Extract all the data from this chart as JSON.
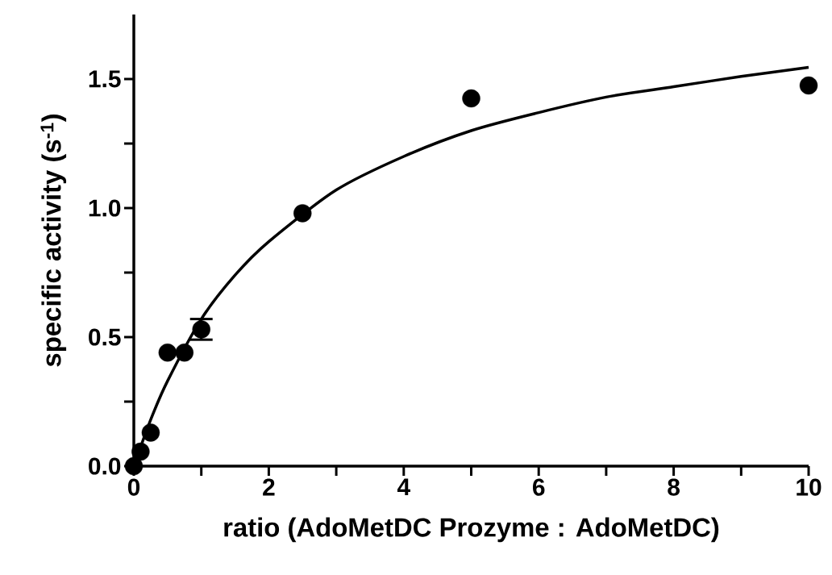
{
  "chart_data": {
    "type": "scatter",
    "xlabel": "ratio (AdoMetDC Prozyme : AdoMetDC)",
    "ylabel": "specific activity (s$^{-1}$)",
    "xlim": [
      0,
      10
    ],
    "ylim": [
      0,
      1.75
    ],
    "xticks": [
      0,
      {
        "value": 1,
        "label": null
      },
      2,
      {
        "value": 3,
        "label": null
      },
      4,
      {
        "value": 5,
        "label": null
      },
      6,
      {
        "value": 7,
        "label": null
      },
      8,
      {
        "value": 9,
        "label": null
      },
      10
    ],
    "yticks": [
      {
        "value": 0,
        "label": "0.0"
      },
      {
        "value": 0.25,
        "label": null
      },
      {
        "value": 0.5,
        "label": "0.5"
      },
      {
        "value": 0.75,
        "label": null
      },
      {
        "value": 1,
        "label": "1.0"
      },
      {
        "value": 1.25,
        "label": null
      },
      {
        "value": 1.5,
        "label": "1.5"
      }
    ],
    "grid": false,
    "series": [
      {
        "marker": "circle",
        "color": "#000000",
        "x": [
          0,
          0.1,
          0.25,
          0.5,
          0.75,
          1,
          2.5,
          5,
          10
        ],
        "values": [
          0,
          0.056,
          0.13,
          0.44,
          0.44,
          0.53,
          0.98,
          1.425,
          1.475
        ],
        "errors": [
          null,
          null,
          null,
          null,
          null,
          0.04,
          null,
          null,
          null
        ]
      },
      {
        "type": "line",
        "marker": "none",
        "line_style": "solid",
        "color": "#000000",
        "x": [
          0,
          0.25,
          0.5,
          1,
          1.5,
          2,
          3,
          4,
          5,
          6,
          7,
          8,
          9,
          10
        ],
        "values": [
          0,
          0.18,
          0.33,
          0.57,
          0.74,
          0.87,
          1.07,
          1.2,
          1.3,
          1.37,
          1.43,
          1.47,
          1.51,
          1.545
        ]
      }
    ]
  }
}
